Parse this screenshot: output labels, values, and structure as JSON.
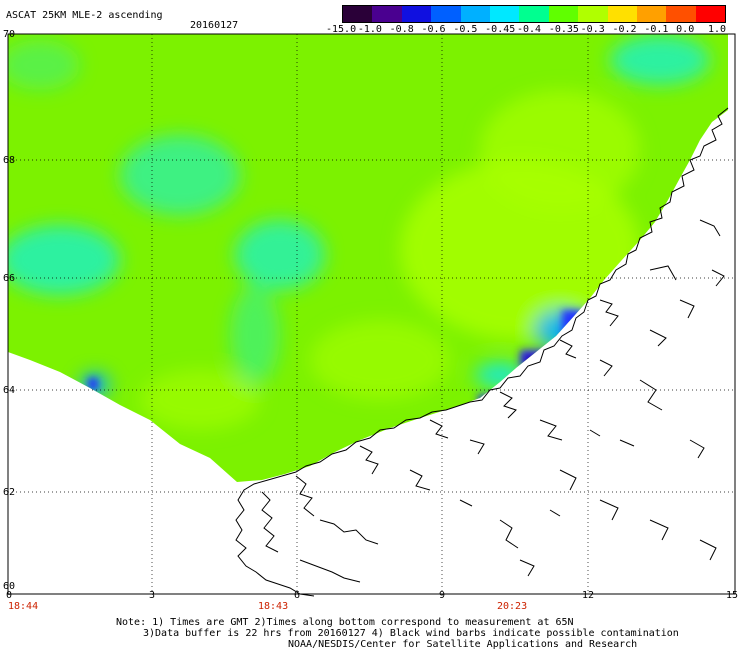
{
  "header": {
    "product": "ASCAT 25KM MLE-2 ascending",
    "date": "20160127"
  },
  "colorbar": {
    "labels": [
      "-15.0",
      "-1.0",
      "-0.8",
      "-0.6",
      "-0.5",
      "-0.45",
      "-0.4",
      "-0.35",
      "-0.3",
      "-0.2",
      "-0.1",
      "0.0",
      "1.0"
    ],
    "colors": [
      "#2a0038",
      "#4a0090",
      "#1010e0",
      "#0060ff",
      "#00b0ff",
      "#00e8ff",
      "#00ff90",
      "#60ff00",
      "#b0ff00",
      "#ffe000",
      "#ffa000",
      "#ff5000",
      "#ff0000"
    ]
  },
  "axes": {
    "lat_labels": [
      "70",
      "68",
      "66",
      "64",
      "62",
      "60"
    ],
    "lon_labels": [
      "0",
      "3",
      "6",
      "9",
      "12",
      "15"
    ]
  },
  "times": [
    "18:44",
    "18:43",
    "20:23"
  ],
  "notes": [
    "Note: 1) Times are GMT 2)Times along bottom correspond to measurement at 65N",
    "3)Data buffer is 22 hrs from 20160127 4) Black wind barbs indicate possible contamination",
    "NOAA/NESDIS/Center for Satellite Applications and Research"
  ],
  "colors": {
    "field_base": "#7cf200",
    "field_light": "#a8ff00",
    "field_cyan": "#19f0c8",
    "field_blue": "#2030ff",
    "field_navy": "#200080",
    "coast": "#000000",
    "time_text": "#cc2200"
  }
}
